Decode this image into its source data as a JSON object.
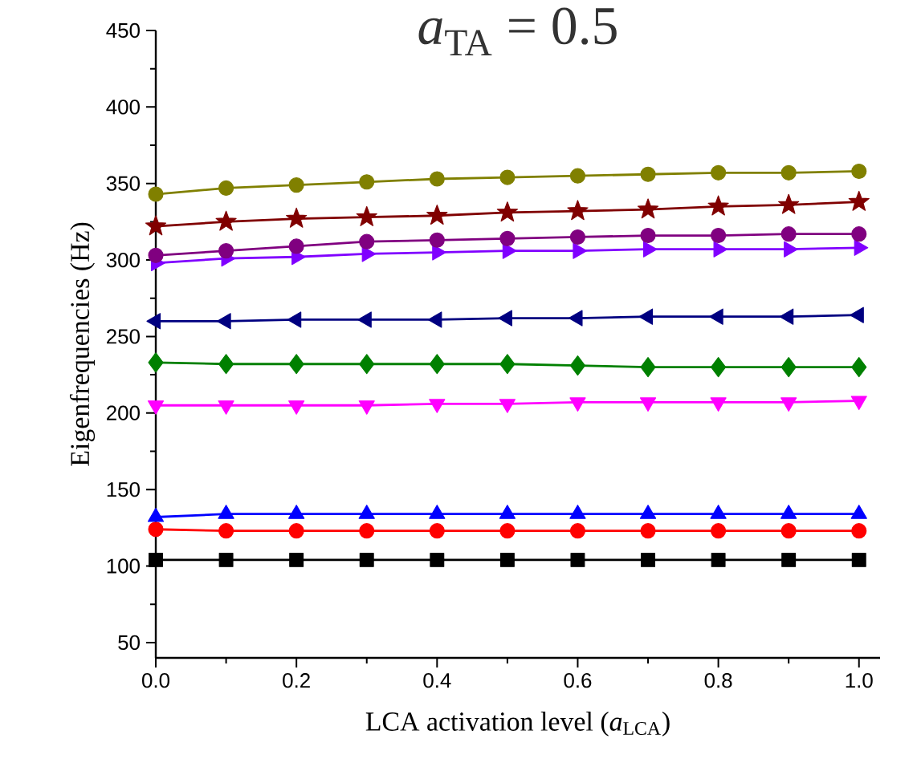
{
  "chart_data": {
    "type": "line",
    "title": "*a*$_{TA}$ = 0.5",
    "xlabel": "LCA activation level (*a*$_{LCA}$)",
    "ylabel": "Eigenfrequencies (Hz)",
    "x": [
      0,
      0.1,
      0.2,
      0.3,
      0.4,
      0.5,
      0.6,
      0.7,
      0.8,
      0.9,
      1.0
    ],
    "xlim": [
      0,
      1.03
    ],
    "ylim": [
      40,
      450
    ],
    "xticks": [
      {
        "value": 0,
        "label": "0.0"
      },
      {
        "value": 0.2,
        "label": "0.2"
      },
      {
        "value": 0.4,
        "label": "0.4"
      },
      {
        "value": 0.6,
        "label": "0.6"
      },
      {
        "value": 0.8,
        "label": "0.8"
      },
      {
        "value": 1.0,
        "label": "1.0"
      }
    ],
    "yticks": [
      50,
      100,
      150,
      200,
      250,
      300,
      350,
      400,
      450
    ],
    "grid": false,
    "line_style": "solid",
    "series": [
      {
        "color": "#000000",
        "marker": "square",
        "values": [
          104,
          104,
          104,
          104,
          104,
          104,
          104,
          104,
          104,
          104,
          104
        ]
      },
      {
        "color": "#ff0000",
        "marker": "circle",
        "values": [
          124,
          123,
          123,
          123,
          123,
          123,
          123,
          123,
          123,
          123,
          123
        ]
      },
      {
        "color": "#0000ff",
        "marker": "triangle",
        "values": [
          132,
          134,
          134,
          134,
          134,
          134,
          134,
          134,
          134,
          134,
          134
        ]
      },
      {
        "color": "#ff00ff",
        "marker": "triangle-down",
        "values": [
          205,
          205,
          205,
          205,
          206,
          206,
          207,
          207,
          207,
          207,
          208
        ]
      },
      {
        "color": "#008000",
        "marker": "diamond",
        "values": [
          233,
          232,
          232,
          232,
          232,
          232,
          231,
          230,
          230,
          230,
          230
        ]
      },
      {
        "color": "#000080",
        "marker": "triangle-left",
        "values": [
          260,
          260,
          261,
          261,
          261,
          262,
          262,
          263,
          263,
          263,
          264
        ]
      },
      {
        "color": "#8000ff",
        "marker": "triangle-right",
        "values": [
          298,
          301,
          302,
          304,
          305,
          306,
          306,
          307,
          307,
          307,
          308
        ]
      },
      {
        "color": "#800080",
        "marker": "circle",
        "values": [
          303,
          306,
          309,
          312,
          313,
          314,
          315,
          316,
          316,
          317,
          317
        ]
      },
      {
        "color": "#800000",
        "marker": "star",
        "values": [
          322,
          325,
          327,
          328,
          329,
          331,
          332,
          333,
          335,
          336,
          338
        ]
      },
      {
        "color": "#808000",
        "marker": "circle",
        "values": [
          343,
          347,
          349,
          351,
          353,
          354,
          355,
          356,
          357,
          357,
          358
        ]
      }
    ]
  }
}
